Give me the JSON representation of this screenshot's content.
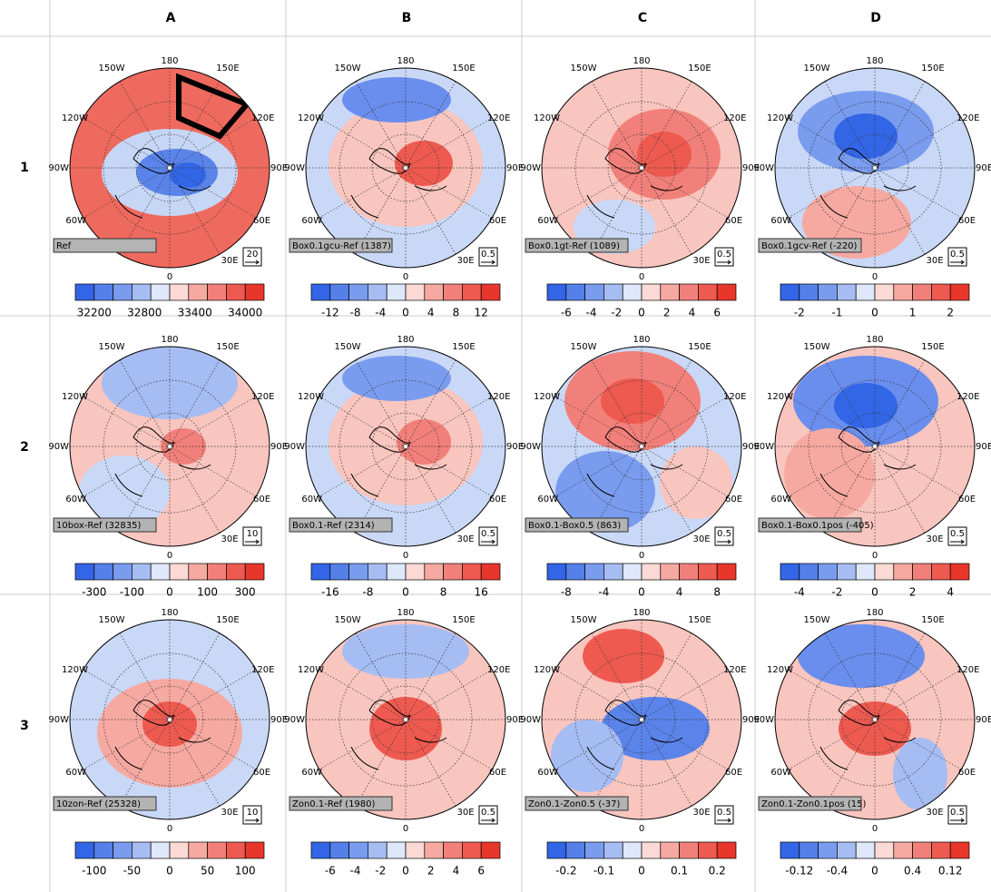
{
  "column_labels": [
    "A",
    "B",
    "C",
    "D"
  ],
  "row_labels": [
    "1",
    "2",
    "3"
  ],
  "longitude_labels": [
    "180",
    "150W",
    "150E",
    "120W",
    "120E",
    "90W",
    "90E",
    "60W",
    "60E",
    "30E",
    "0"
  ],
  "panels": [
    {
      "label": "Ref",
      "scale": "20",
      "colorbar_ticks": [
        "32200",
        "32800",
        "33400",
        "34000"
      ]
    },
    {
      "label": "Box0.1gcu-Ref (1387)",
      "scale": "0.5",
      "colorbar_ticks": [
        "-12",
        "-8",
        "-4",
        "0",
        "4",
        "8",
        "12"
      ]
    },
    {
      "label": "Box0.1gt-Ref (1089)",
      "scale": "0.5",
      "colorbar_ticks": [
        "-6",
        "-4",
        "-2",
        "0",
        "2",
        "4",
        "6"
      ]
    },
    {
      "label": "Box0.1gcv-Ref (-220)",
      "scale": "0.5",
      "colorbar_ticks": [
        "-2",
        "-1",
        "0",
        "1",
        "2"
      ]
    },
    {
      "label": "10box-Ref (32835)",
      "scale": "10",
      "colorbar_ticks": [
        "-300",
        "-100",
        "0",
        "100",
        "300"
      ]
    },
    {
      "label": "Box0.1-Ref (2314)",
      "scale": "0.5",
      "colorbar_ticks": [
        "-16",
        "-8",
        "0",
        "8",
        "16"
      ]
    },
    {
      "label": "Box0.1-Box0.5 (863)",
      "scale": "0.5",
      "colorbar_ticks": [
        "-8",
        "-4",
        "0",
        "4",
        "8"
      ]
    },
    {
      "label": "Box0.1-Box0.1pos (-405)",
      "scale": "0.5",
      "colorbar_ticks": [
        "-4",
        "-2",
        "0",
        "2",
        "4"
      ]
    },
    {
      "label": "10zon-Ref (25328)",
      "scale": "10",
      "colorbar_ticks": [
        "-100",
        "-50",
        "0",
        "50",
        "100"
      ]
    },
    {
      "label": "Zon0.1-Ref (1980)",
      "scale": "0.5",
      "colorbar_ticks": [
        "-6",
        "-4",
        "-2",
        "0",
        "2",
        "4",
        "6"
      ]
    },
    {
      "label": "Zon0.1-Zon0.5 (-37)",
      "scale": "0.5",
      "colorbar_ticks": [
        "-0.2",
        "-0.1",
        "0",
        "0.1",
        "0.2"
      ]
    },
    {
      "label": "Zon0.1-Zon0.1pos (15)",
      "scale": "0.5",
      "colorbar_ticks": [
        "-0.12",
        "-0.4",
        "0",
        "0.4",
        "0.12"
      ]
    }
  ]
}
